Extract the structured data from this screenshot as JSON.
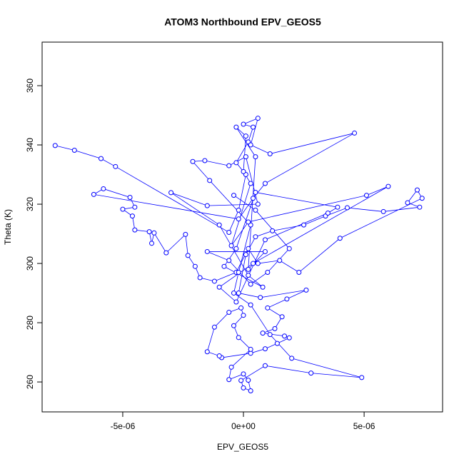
{
  "chart_data": {
    "type": "scatter",
    "title": "ATOM3 Northbound EPV_GEOS5",
    "xlabel": "EPV_GEOS5",
    "ylabel": "Theta (K)",
    "xlim": [
      -8.34e-06,
      8.25e-06
    ],
    "ylim": [
      249.9,
      374.7
    ],
    "xticks": [
      {
        "value": -5e-06,
        "label": "-5e-06"
      },
      {
        "value": 0,
        "label": "0e+00"
      },
      {
        "value": 5e-06,
        "label": "5e-06"
      }
    ],
    "yticks": [
      260,
      280,
      300,
      320,
      340,
      360
    ],
    "series": [
      {
        "color": "#0000ff",
        "x": [
          -7.8e-06,
          -7e-06,
          -5.9e-06,
          -5.3e-06,
          -6e-07,
          -2e-07,
          1e-07,
          -3e-07,
          2e-07,
          4e-07,
          0.0,
          6e-07,
          3e-07,
          1.1e-06,
          4.6e-06,
          9e-07,
          4e-07,
          -2e-07,
          -6.2e-06,
          -5.8e-06,
          -4.7e-06,
          -4.5e-06,
          -5e-06,
          -4.6e-06,
          -4.5e-06,
          -3.9e-06,
          -3.8e-06,
          -3.7e-06,
          -3.2e-06,
          -2.4e-06,
          -2.3e-06,
          -2e-06,
          -1.8e-06,
          -1.2e-06,
          -3e-07,
          2e-07,
          6e-07,
          1.5e-06,
          2.3e-06,
          4e-06,
          7.4e-06,
          7.2e-06,
          6.8e-06,
          7.3e-06,
          5.8e-06,
          4.3e-06,
          3.4e-06,
          2.5e-06,
          1.2e-06,
          5e-07,
          1e-07,
          -2e-07,
          7e-07,
          2.6e-06,
          1.8e-06,
          1e-06,
          1.6e-06,
          1.3e-06,
          8e-07,
          1.7e-06,
          1.9e-06,
          1.4e-06,
          9e-07,
          3e-07,
          -9e-07,
          -1e-06,
          -1.5e-06,
          -1.2e-06,
          -6e-07,
          -1e-07,
          0.0,
          -4e-07,
          -2e-07,
          3e-07,
          -5e-07,
          -6e-07,
          0.0,
          2e-07,
          3e-07,
          0.0,
          -1e-07,
          9e-07,
          2.8e-06,
          4.9e-06,
          2e-06,
          1.1e-06,
          3e-07,
          -4e-07,
          -2e-07,
          3e-07,
          -1.4e-06,
          -2.1e-06,
          -1.6e-06,
          -6e-07,
          1e-07,
          6e-07,
          -1.5e-06,
          -3e-06,
          -1e-06,
          2e-07,
          8e-07,
          -8e-07,
          -3e-07,
          5e-07,
          3.9e-06,
          3.5e-06,
          9e-07,
          -3e-07,
          -1e-06,
          4e-07,
          6e-06,
          5.1e-06,
          2e-07,
          -5e-07,
          3e-07,
          0.0,
          1e-07,
          -3e-07,
          5e-07,
          2e-07,
          9e-07,
          -1.5e-06,
          -6e-07,
          3e-07,
          1e-06,
          1.9e-06,
          5e-07,
          -4e-07
        ],
        "values": [
          339.8,
          338.2,
          335.4,
          332.7,
          310.5,
          318,
          330,
          334,
          341,
          346,
          347,
          349,
          340,
          337,
          344,
          327,
          322,
          315,
          323.3,
          325.2,
          322.3,
          319,
          318.3,
          316,
          311.3,
          310.7,
          306.8,
          310.3,
          303.6,
          309.8,
          302.7,
          299,
          295.2,
          294,
          297,
          305,
          300,
          301,
          297,
          308.5,
          322,
          324.8,
          320.5,
          319,
          317.5,
          318.8,
          316,
          313,
          311,
          309,
          303,
          290,
          288.5,
          291,
          288,
          285,
          282,
          278,
          276.5,
          275.5,
          274.9,
          273,
          271.2,
          269.7,
          268.2,
          268.8,
          270.2,
          278.5,
          283.5,
          285,
          282.5,
          279,
          275,
          271,
          265,
          260.8,
          262.7,
          260.6,
          257,
          258,
          260.5,
          265.5,
          263,
          261.5,
          268,
          276,
          286,
          290,
          297,
          313,
          328,
          334.4,
          334.7,
          333,
          336,
          320,
          319.5,
          323.9,
          313,
          296,
          292,
          299,
          305,
          324,
          319,
          317,
          308,
          287,
          292,
          300,
          326,
          323,
          314,
          306,
          327,
          331,
          343,
          346,
          336,
          298,
          304,
          304,
          301,
          293,
          297,
          305,
          318,
          323
        ]
      }
    ]
  }
}
